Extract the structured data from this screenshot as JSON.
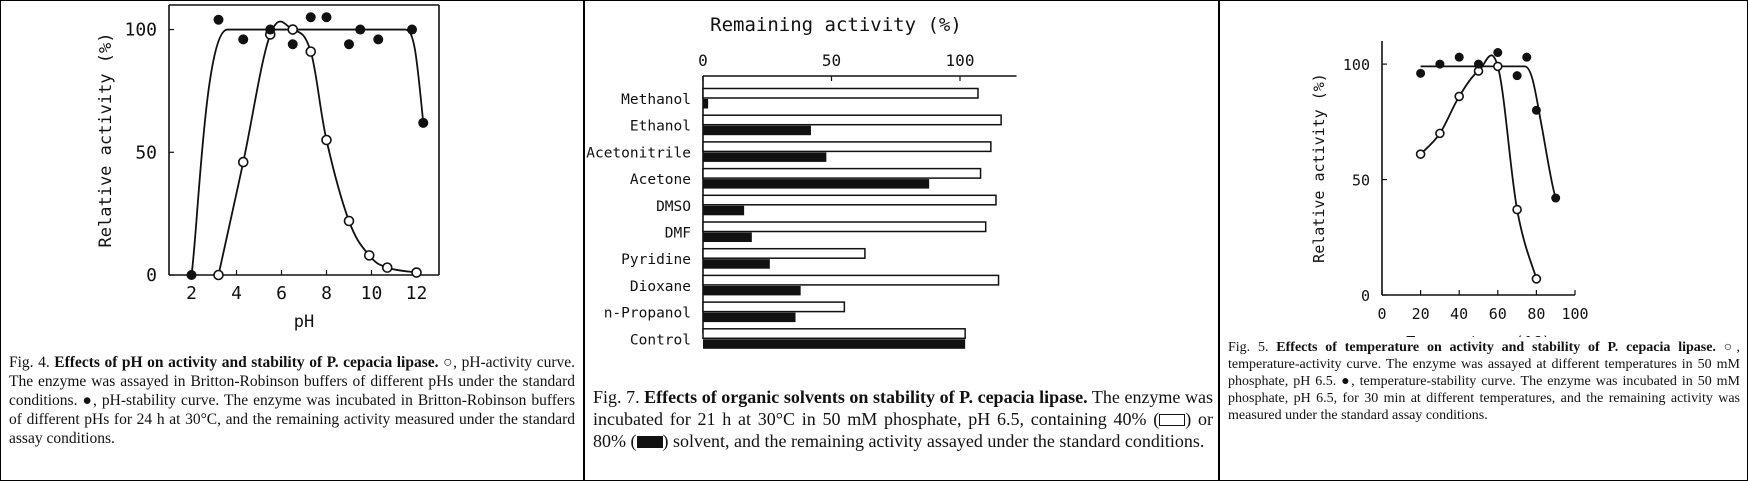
{
  "chart_data": [
    {
      "type": "line",
      "xlabel": "pH",
      "ylabel": "Relative activity (%)",
      "xlim": [
        1,
        13
      ],
      "ylim": [
        0,
        110
      ],
      "xticks": [
        "2",
        "4",
        "6",
        "8",
        "10",
        "12"
      ],
      "yticks": [
        "0",
        "50",
        "100"
      ],
      "series": [
        {
          "marker": "open-circle",
          "x": [
            3.2,
            4.3,
            5.5,
            6.5,
            7.3,
            8.0,
            9.0,
            9.9,
            10.7,
            12.0
          ],
          "y": [
            0,
            46,
            98,
            100,
            91,
            55,
            22,
            8,
            3,
            1
          ]
        },
        {
          "marker": "filled-circle",
          "x": [
            2.0,
            3.2,
            4.3,
            5.5,
            6.5,
            7.3,
            8.0,
            9.0,
            9.5,
            10.3,
            11.8,
            12.3
          ],
          "y": [
            0,
            104,
            96,
            100,
            94,
            105,
            105,
            94,
            100,
            96,
            100,
            62
          ]
        }
      ],
      "caption": {
        "fig": "Fig. 4.",
        "title": "Effects of pH on activity and stability of P. cepacia lipase.",
        "text": "○, pH-activity curve. The enzyme was assayed in Britton-Robinson buffers of different pHs under the standard conditions. ●, pH-stability curve. The enzyme was incubated in Britton-Robinson buffers of different pHs for 24 h at 30°C, and the remaining activity measured under the standard assay conditions."
      }
    },
    {
      "type": "bar",
      "orientation": "horizontal",
      "title": "Remaining activity (%)",
      "xlim": [
        0,
        122
      ],
      "xticks": [
        "0",
        "50",
        "100"
      ],
      "categories": [
        "Methanol",
        "Ethanol",
        "Acetonitrile",
        "Acetone",
        "DMSO",
        "DMF",
        "Pyridine",
        "Dioxane",
        "n-Propanol",
        "Control"
      ],
      "series": [
        {
          "fill": "open",
          "values": [
            107,
            116,
            112,
            108,
            114,
            110,
            63,
            115,
            55,
            102
          ]
        },
        {
          "fill": "filled",
          "values": [
            2,
            42,
            48,
            88,
            16,
            19,
            26,
            38,
            36,
            102
          ]
        }
      ],
      "caption": {
        "fig": "Fig. 7.",
        "title": "Effects of organic solvents on stability of P. cepacia lipase.",
        "text_before": "The enzyme was incubated for 21 h at 30°C in 50 mM phosphate, pH 6.5, containing 40% (",
        "text_middle": ") or 80% (",
        "text_after": ") solvent, and the remaining activity assayed under the standard conditions."
      }
    },
    {
      "type": "line",
      "xlabel": "Temperature (°C)",
      "ylabel": "Relative activity (%)",
      "xlim": [
        0,
        100
      ],
      "ylim": [
        0,
        110
      ],
      "xticks": [
        "0",
        "20",
        "40",
        "60",
        "80",
        "100"
      ],
      "yticks": [
        "0",
        "50",
        "100"
      ],
      "series": [
        {
          "marker": "open-circle",
          "x": [
            20,
            30,
            40,
            50,
            60,
            70,
            80
          ],
          "y": [
            61,
            70,
            86,
            97,
            99,
            37,
            7
          ]
        },
        {
          "marker": "filled-circle",
          "x": [
            20,
            30,
            40,
            50,
            60,
            70,
            75,
            80,
            90
          ],
          "y": [
            96,
            100,
            103,
            100,
            105,
            95,
            103,
            80,
            42
          ]
        }
      ],
      "caption": {
        "fig": "Fig. 5.",
        "title": "Effects of temperature on activity and stability of P. cepacia lipase.",
        "text": "○, temperature-activity curve. The enzyme was assayed at different temperatures in 50 mM phosphate, pH 6.5. ●, temperature-stability curve. The enzyme was incubated in 50 mM phosphate, pH 6.5, for 30 min at different temperatures, and the remaining activity was measured under the standard assay conditions."
      }
    }
  ]
}
